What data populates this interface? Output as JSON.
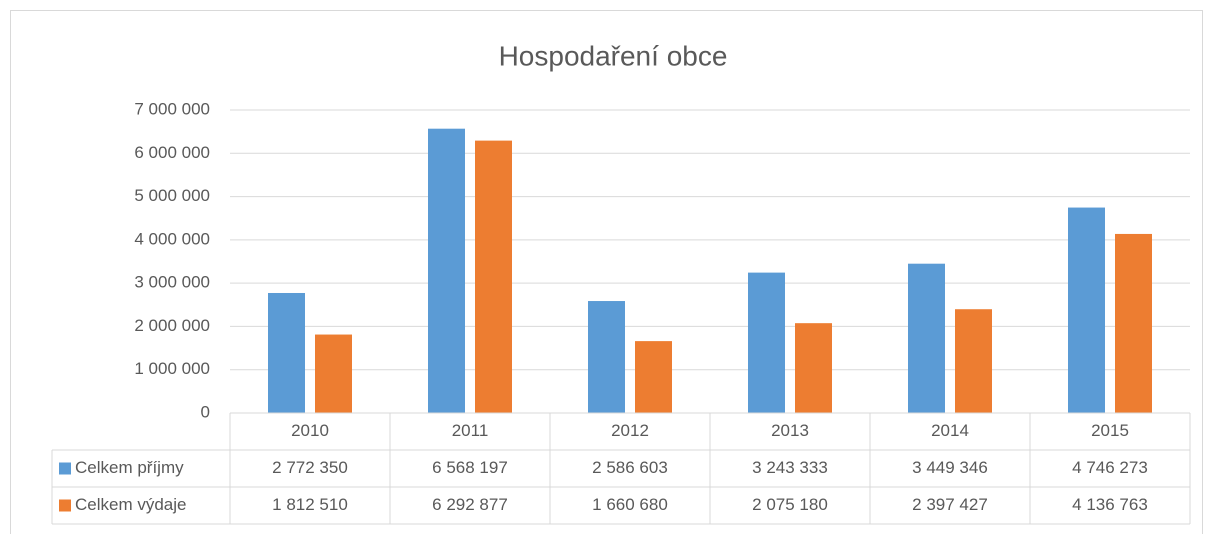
{
  "chart_data": {
    "type": "bar",
    "title": "Hospodaření obce",
    "categories": [
      "2010",
      "2011",
      "2012",
      "2013",
      "2014",
      "2015"
    ],
    "series": [
      {
        "name": "Celkem příjmy",
        "color": "#5b9bd5",
        "values": [
          2772350,
          6568197,
          2586603,
          3243333,
          3449346,
          4746273
        ],
        "value_labels": [
          "2 772 350",
          "6 568 197",
          "2 586 603",
          "3 243 333",
          "3 449 346",
          "4 746 273"
        ]
      },
      {
        "name": "Celkem výdaje",
        "color": "#ed7d31",
        "values": [
          1812510,
          6292877,
          1660680,
          2075180,
          2397427,
          4136763
        ],
        "value_labels": [
          "1 812 510",
          "6 292 877",
          "1 660 680",
          "2 075 180",
          "2 397 427",
          "4 136 763"
        ]
      }
    ],
    "ylim": [
      0,
      7000000
    ],
    "yticks": [
      0,
      {
        "value": 1000000,
        "label": "1 000 000"
      },
      {
        "value": 2000000,
        "label": "2 000 000"
      },
      {
        "value": 3000000,
        "label": "3 000 000"
      },
      {
        "value": 4000000,
        "label": "4 000 000"
      },
      {
        "value": 5000000,
        "label": "5 000 000"
      },
      {
        "value": 6000000,
        "label": "6 000 000"
      },
      {
        "value": 7000000,
        "label": "7 000 000"
      }
    ],
    "grid": true
  }
}
